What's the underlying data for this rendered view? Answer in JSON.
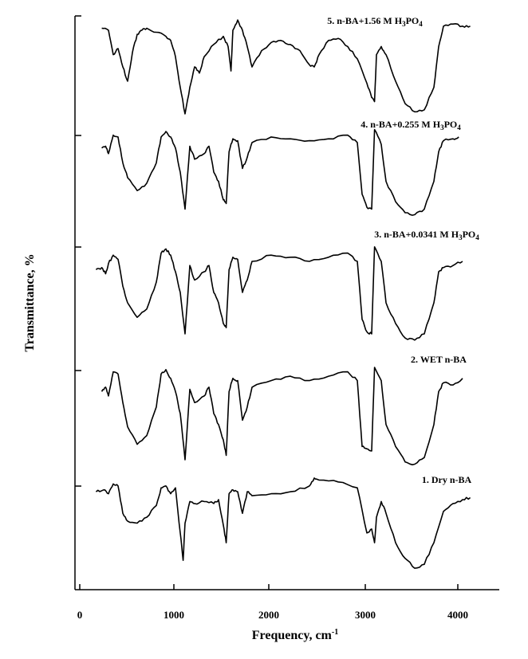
{
  "chart_data": {
    "type": "line",
    "title": "",
    "xlabel": "Frequency, cm",
    "xlabel_sup": "-1",
    "ylabel": "Transmittance, %",
    "xlim": [
      0,
      4300
    ],
    "x_ticks": [
      0,
      1000,
      2000,
      3000,
      4000
    ],
    "x_tick_labels": [
      "0",
      "1000",
      "2000",
      "3000",
      "4000"
    ],
    "grid": false,
    "legend": "labels above each trace",
    "series": [
      {
        "name": "1. Dry n-BA",
        "name_main": "1. Dry n-BA",
        "name_sub": "",
        "name_tail": "",
        "points": [
          [
            170,
            0.82
          ],
          [
            250,
            0.84
          ],
          [
            300,
            0.8
          ],
          [
            350,
            0.9
          ],
          [
            400,
            0.88
          ],
          [
            450,
            0.6
          ],
          [
            500,
            0.52
          ],
          [
            600,
            0.5
          ],
          [
            700,
            0.56
          ],
          [
            800,
            0.68
          ],
          [
            850,
            0.86
          ],
          [
            900,
            0.88
          ],
          [
            950,
            0.8
          ],
          [
            1000,
            0.86
          ],
          [
            1050,
            0.4
          ],
          [
            1080,
            0.12
          ],
          [
            1100,
            0.5
          ],
          [
            1150,
            0.72
          ],
          [
            1200,
            0.7
          ],
          [
            1300,
            0.72
          ],
          [
            1400,
            0.7
          ],
          [
            1450,
            0.74
          ],
          [
            1500,
            0.48
          ],
          [
            1530,
            0.3
          ],
          [
            1560,
            0.8
          ],
          [
            1600,
            0.84
          ],
          [
            1650,
            0.82
          ],
          [
            1700,
            0.6
          ],
          [
            1750,
            0.82
          ],
          [
            1800,
            0.78
          ],
          [
            2000,
            0.8
          ],
          [
            2200,
            0.82
          ],
          [
            2400,
            0.88
          ],
          [
            2450,
            0.96
          ],
          [
            2500,
            0.94
          ],
          [
            2700,
            0.92
          ],
          [
            2900,
            0.86
          ],
          [
            3000,
            0.4
          ],
          [
            3050,
            0.44
          ],
          [
            3080,
            0.3
          ],
          [
            3100,
            0.56
          ],
          [
            3150,
            0.72
          ],
          [
            3200,
            0.6
          ],
          [
            3300,
            0.3
          ],
          [
            3400,
            0.14
          ],
          [
            3500,
            0.04
          ],
          [
            3600,
            0.08
          ],
          [
            3700,
            0.3
          ],
          [
            3800,
            0.62
          ],
          [
            3900,
            0.7
          ],
          [
            4000,
            0.74
          ],
          [
            4080,
            0.76
          ]
        ]
      },
      {
        "name": "2. WET n-BA",
        "name_main": "2. WET n-BA",
        "name_sub": "",
        "name_tail": "",
        "points": [
          [
            230,
            0.7
          ],
          [
            270,
            0.74
          ],
          [
            300,
            0.66
          ],
          [
            350,
            0.88
          ],
          [
            400,
            0.86
          ],
          [
            450,
            0.6
          ],
          [
            500,
            0.38
          ],
          [
            600,
            0.22
          ],
          [
            700,
            0.3
          ],
          [
            800,
            0.56
          ],
          [
            850,
            0.86
          ],
          [
            900,
            0.9
          ],
          [
            950,
            0.82
          ],
          [
            1000,
            0.7
          ],
          [
            1050,
            0.5
          ],
          [
            1100,
            0.08
          ],
          [
            1150,
            0.72
          ],
          [
            1200,
            0.6
          ],
          [
            1300,
            0.66
          ],
          [
            1350,
            0.74
          ],
          [
            1400,
            0.5
          ],
          [
            1450,
            0.4
          ],
          [
            1500,
            0.26
          ],
          [
            1530,
            0.12
          ],
          [
            1560,
            0.7
          ],
          [
            1600,
            0.82
          ],
          [
            1650,
            0.8
          ],
          [
            1700,
            0.44
          ],
          [
            1750,
            0.56
          ],
          [
            1800,
            0.74
          ],
          [
            2000,
            0.8
          ],
          [
            2200,
            0.84
          ],
          [
            2400,
            0.8
          ],
          [
            2600,
            0.84
          ],
          [
            2800,
            0.88
          ],
          [
            2900,
            0.8
          ],
          [
            2950,
            0.2
          ],
          [
            3000,
            0.18
          ],
          [
            3050,
            0.16
          ],
          [
            3080,
            0.92
          ],
          [
            3150,
            0.8
          ],
          [
            3200,
            0.4
          ],
          [
            3300,
            0.2
          ],
          [
            3400,
            0.06
          ],
          [
            3500,
            0.04
          ],
          [
            3600,
            0.1
          ],
          [
            3700,
            0.4
          ],
          [
            3750,
            0.7
          ],
          [
            3800,
            0.78
          ],
          [
            3900,
            0.76
          ],
          [
            4000,
            0.82
          ]
        ]
      },
      {
        "name": "3. n-BA+0.0341 M H3PO4",
        "name_main": "3. n-BA+0.0341 M H",
        "name_sub": "3",
        "name_tail": "PO4",
        "points": [
          [
            170,
            0.72
          ],
          [
            230,
            0.74
          ],
          [
            270,
            0.68
          ],
          [
            300,
            0.78
          ],
          [
            350,
            0.86
          ],
          [
            400,
            0.82
          ],
          [
            450,
            0.56
          ],
          [
            500,
            0.4
          ],
          [
            600,
            0.26
          ],
          [
            700,
            0.34
          ],
          [
            800,
            0.6
          ],
          [
            850,
            0.88
          ],
          [
            900,
            0.92
          ],
          [
            950,
            0.86
          ],
          [
            1000,
            0.7
          ],
          [
            1050,
            0.5
          ],
          [
            1100,
            0.1
          ],
          [
            1150,
            0.76
          ],
          [
            1200,
            0.62
          ],
          [
            1300,
            0.7
          ],
          [
            1350,
            0.76
          ],
          [
            1400,
            0.5
          ],
          [
            1450,
            0.4
          ],
          [
            1500,
            0.2
          ],
          [
            1530,
            0.16
          ],
          [
            1560,
            0.72
          ],
          [
            1600,
            0.84
          ],
          [
            1650,
            0.82
          ],
          [
            1700,
            0.5
          ],
          [
            1750,
            0.62
          ],
          [
            1800,
            0.8
          ],
          [
            2000,
            0.86
          ],
          [
            2200,
            0.84
          ],
          [
            2400,
            0.8
          ],
          [
            2600,
            0.84
          ],
          [
            2800,
            0.88
          ],
          [
            2900,
            0.8
          ],
          [
            2950,
            0.24
          ],
          [
            3000,
            0.12
          ],
          [
            3050,
            0.1
          ],
          [
            3080,
            0.94
          ],
          [
            3150,
            0.8
          ],
          [
            3200,
            0.4
          ],
          [
            3300,
            0.2
          ],
          [
            3400,
            0.06
          ],
          [
            3500,
            0.04
          ],
          [
            3600,
            0.1
          ],
          [
            3700,
            0.4
          ],
          [
            3750,
            0.7
          ],
          [
            3800,
            0.74
          ],
          [
            3900,
            0.76
          ],
          [
            4000,
            0.8
          ]
        ]
      },
      {
        "name": "4. n-BA+0.255 M H3PO4",
        "name_main": "4. n-BA+0.255 M H",
        "name_sub": "3",
        "name_tail": "PO4",
        "points": [
          [
            230,
            0.76
          ],
          [
            270,
            0.78
          ],
          [
            300,
            0.7
          ],
          [
            350,
            0.9
          ],
          [
            400,
            0.88
          ],
          [
            450,
            0.6
          ],
          [
            500,
            0.44
          ],
          [
            600,
            0.3
          ],
          [
            700,
            0.38
          ],
          [
            800,
            0.6
          ],
          [
            850,
            0.88
          ],
          [
            900,
            0.94
          ],
          [
            950,
            0.88
          ],
          [
            1000,
            0.76
          ],
          [
            1050,
            0.5
          ],
          [
            1100,
            0.1
          ],
          [
            1150,
            0.78
          ],
          [
            1200,
            0.64
          ],
          [
            1300,
            0.7
          ],
          [
            1350,
            0.78
          ],
          [
            1400,
            0.5
          ],
          [
            1450,
            0.4
          ],
          [
            1500,
            0.2
          ],
          [
            1530,
            0.16
          ],
          [
            1560,
            0.72
          ],
          [
            1600,
            0.86
          ],
          [
            1650,
            0.84
          ],
          [
            1700,
            0.54
          ],
          [
            1750,
            0.66
          ],
          [
            1800,
            0.82
          ],
          [
            2000,
            0.88
          ],
          [
            2200,
            0.86
          ],
          [
            2400,
            0.84
          ],
          [
            2600,
            0.86
          ],
          [
            2800,
            0.9
          ],
          [
            2900,
            0.82
          ],
          [
            2950,
            0.26
          ],
          [
            3000,
            0.12
          ],
          [
            3050,
            0.1
          ],
          [
            3080,
            0.96
          ],
          [
            3150,
            0.8
          ],
          [
            3200,
            0.4
          ],
          [
            3300,
            0.18
          ],
          [
            3400,
            0.06
          ],
          [
            3500,
            0.04
          ],
          [
            3600,
            0.1
          ],
          [
            3700,
            0.4
          ],
          [
            3750,
            0.72
          ],
          [
            3800,
            0.84
          ],
          [
            3900,
            0.86
          ],
          [
            3960,
            0.88
          ]
        ]
      },
      {
        "name": "5. n-BA+1.56 M H3PO4",
        "name_main": "5. n-BA+1.56 M H",
        "name_sub": "3",
        "name_tail": "PO4",
        "points": [
          [
            230,
            0.88
          ],
          [
            300,
            0.86
          ],
          [
            350,
            0.62
          ],
          [
            400,
            0.68
          ],
          [
            450,
            0.5
          ],
          [
            500,
            0.36
          ],
          [
            550,
            0.64
          ],
          [
            600,
            0.82
          ],
          [
            650,
            0.86
          ],
          [
            700,
            0.88
          ],
          [
            800,
            0.84
          ],
          [
            900,
            0.8
          ],
          [
            950,
            0.76
          ],
          [
            1000,
            0.6
          ],
          [
            1050,
            0.3
          ],
          [
            1100,
            0.04
          ],
          [
            1150,
            0.3
          ],
          [
            1200,
            0.5
          ],
          [
            1250,
            0.44
          ],
          [
            1300,
            0.6
          ],
          [
            1400,
            0.72
          ],
          [
            1500,
            0.8
          ],
          [
            1550,
            0.7
          ],
          [
            1580,
            0.46
          ],
          [
            1600,
            0.86
          ],
          [
            1650,
            0.96
          ],
          [
            1700,
            0.86
          ],
          [
            1750,
            0.7
          ],
          [
            1800,
            0.5
          ],
          [
            1900,
            0.66
          ],
          [
            2000,
            0.74
          ],
          [
            2100,
            0.76
          ],
          [
            2200,
            0.72
          ],
          [
            2300,
            0.66
          ],
          [
            2400,
            0.52
          ],
          [
            2450,
            0.5
          ],
          [
            2500,
            0.62
          ],
          [
            2600,
            0.76
          ],
          [
            2700,
            0.78
          ],
          [
            2800,
            0.7
          ],
          [
            2900,
            0.58
          ],
          [
            3000,
            0.34
          ],
          [
            3050,
            0.2
          ],
          [
            3080,
            0.16
          ],
          [
            3100,
            0.62
          ],
          [
            3150,
            0.7
          ],
          [
            3200,
            0.62
          ],
          [
            3300,
            0.36
          ],
          [
            3400,
            0.14
          ],
          [
            3500,
            0.06
          ],
          [
            3600,
            0.08
          ],
          [
            3700,
            0.3
          ],
          [
            3750,
            0.7
          ],
          [
            3800,
            0.9
          ],
          [
            3900,
            0.92
          ],
          [
            4000,
            0.9
          ],
          [
            4080,
            0.9
          ]
        ]
      }
    ]
  }
}
